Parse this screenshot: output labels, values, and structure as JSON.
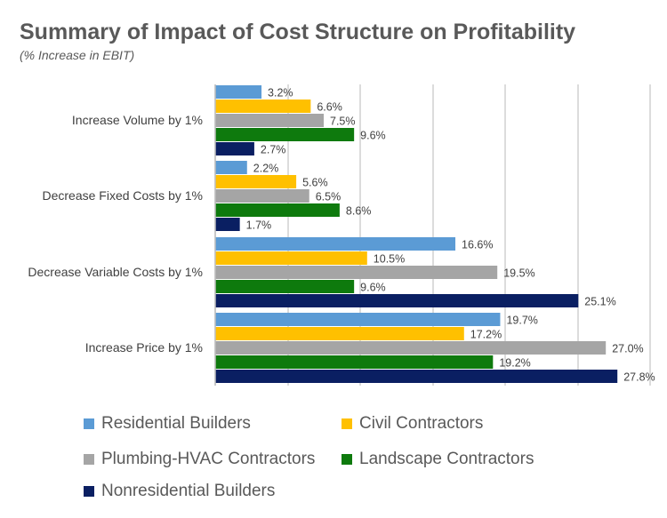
{
  "title": "Summary of Impact of Cost Structure on Profitability",
  "subtitle": "(% Increase in EBIT)",
  "chart_data": {
    "type": "bar",
    "orientation": "horizontal",
    "categories": [
      "Increase Volume by 1%",
      "Decrease Fixed Costs by 1%",
      "Decrease Variable Costs by 1%",
      "Increase Price by 1%"
    ],
    "series": [
      {
        "name": "Residential Builders",
        "color": "#5b9bd5",
        "values": [
          3.2,
          2.2,
          16.6,
          19.7
        ],
        "labels": [
          "3.2%",
          "2.2%",
          "16.6%",
          "19.7%"
        ]
      },
      {
        "name": "Civil Contractors",
        "color": "#ffc000",
        "values": [
          6.6,
          5.6,
          10.5,
          17.2
        ],
        "labels": [
          "6.6%",
          "5.6%",
          "10.5%",
          "17.2%"
        ]
      },
      {
        "name": "Plumbing-HVAC Contractors",
        "color": "#a5a5a5",
        "values": [
          7.5,
          6.5,
          19.5,
          27.0
        ],
        "labels": [
          "7.5%",
          "6.5%",
          "19.5%",
          "27.0%"
        ]
      },
      {
        "name": "Landscape Contractors",
        "color": "#0e7a0d",
        "values": [
          9.6,
          8.6,
          9.6,
          19.2
        ],
        "labels": [
          "9.6%",
          "8.6%",
          "9.6%",
          "19.2%"
        ]
      },
      {
        "name": "Nonresidential Builders",
        "color": "#0a1f62",
        "values": [
          2.7,
          1.7,
          25.1,
          27.8
        ],
        "labels": [
          "2.7%",
          "1.7%",
          "25.1%",
          "27.8%"
        ]
      }
    ],
    "xlim": [
      0,
      30
    ],
    "grid": true,
    "legend_position": "bottom"
  }
}
